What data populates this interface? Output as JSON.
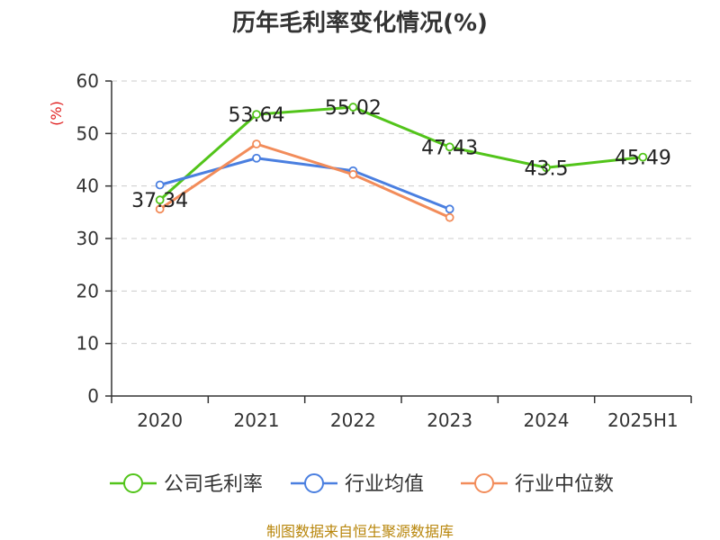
{
  "title": "历年毛利率变化情况(%)",
  "source": "制图数据来自恒生聚源数据库",
  "chart_data": {
    "type": "line",
    "title": "历年毛利率变化情况(%)",
    "ylabel": "(%)",
    "categories": [
      "2020",
      "2021",
      "2022",
      "2023",
      "2024",
      "2025H1"
    ],
    "ylim": [
      0,
      60
    ],
    "yticks": [
      0,
      10,
      20,
      30,
      40,
      50,
      60
    ],
    "grid": true,
    "legend_position": "bottom",
    "series": [
      {
        "name": "公司毛利率",
        "color": "#52c41a",
        "values": [
          37.34,
          53.64,
          55.02,
          47.43,
          43.5,
          45.49
        ],
        "labels": [
          "37.34",
          "53.64",
          "55.02",
          "47.43",
          "43.5",
          "45.49"
        ]
      },
      {
        "name": "行业均值",
        "color": "#4a7fe0",
        "values": [
          40.2,
          45.3,
          42.9,
          35.6,
          null,
          null
        ]
      },
      {
        "name": "行业中位数",
        "color": "#f28c5a",
        "values": [
          35.6,
          48.0,
          42.2,
          34.0,
          null,
          null
        ]
      }
    ]
  }
}
